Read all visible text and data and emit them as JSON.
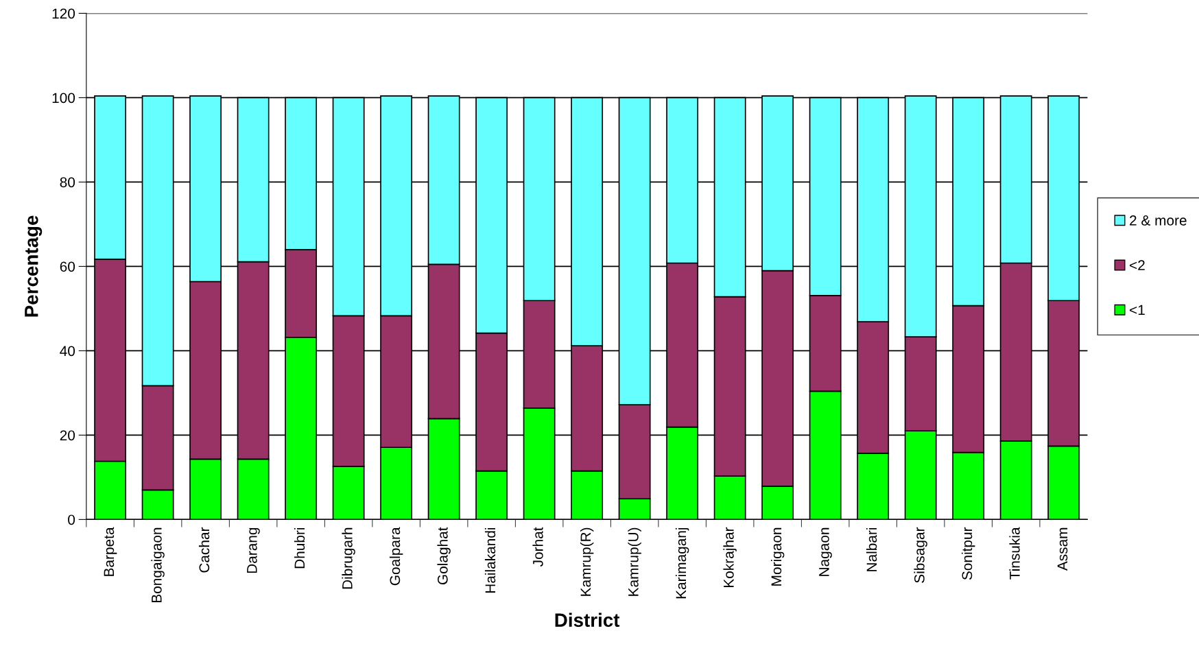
{
  "chart_data": {
    "type": "bar",
    "stacked": true,
    "xlabel": "District",
    "ylabel": "Percentage",
    "categories": [
      "Barpeta",
      "Bongaigaon",
      "Cachar",
      "Darang",
      "Dhubri",
      "Dibrugarh",
      "Goalpara",
      "Golaghat",
      "Hailakandi",
      "Jorhat",
      "Kamrup(R)",
      "Kamrup(U)",
      "Karimaganj",
      "Kokrajhar",
      "Morigaon",
      "Nagaon",
      "Nalbari",
      "Sibsagar",
      "Sonitpur",
      "Tinsukia",
      "Assam"
    ],
    "series": [
      {
        "name": "<1",
        "color": "#00ff00",
        "values": [
          13.8,
          7.0,
          14.3,
          14.3,
          43.2,
          12.6,
          17.1,
          23.9,
          11.5,
          26.4,
          11.5,
          4.9,
          21.9,
          10.3,
          7.9,
          30.4,
          15.7,
          21.0,
          15.9,
          18.6,
          17.4
        ]
      },
      {
        "name": "<2",
        "color": "#993366",
        "values": [
          47.9,
          24.7,
          42.1,
          46.8,
          20.8,
          35.7,
          31.2,
          36.6,
          32.7,
          25.5,
          29.7,
          22.3,
          38.9,
          42.5,
          51.1,
          22.7,
          31.2,
          22.3,
          34.8,
          42.2,
          34.5
        ]
      },
      {
        "name": "2 & more",
        "color": "#66ffff",
        "values": [
          38.7,
          68.7,
          44.0,
          38.9,
          36.0,
          51.7,
          52.1,
          39.9,
          55.8,
          48.1,
          58.8,
          72.8,
          39.2,
          47.2,
          41.4,
          46.9,
          53.1,
          57.1,
          49.3,
          39.6,
          48.5
        ]
      }
    ],
    "ylim": [
      0,
      120
    ],
    "yticks": [
      0,
      20,
      40,
      60,
      80,
      100,
      120
    ],
    "grid": "y",
    "legend": "right"
  }
}
